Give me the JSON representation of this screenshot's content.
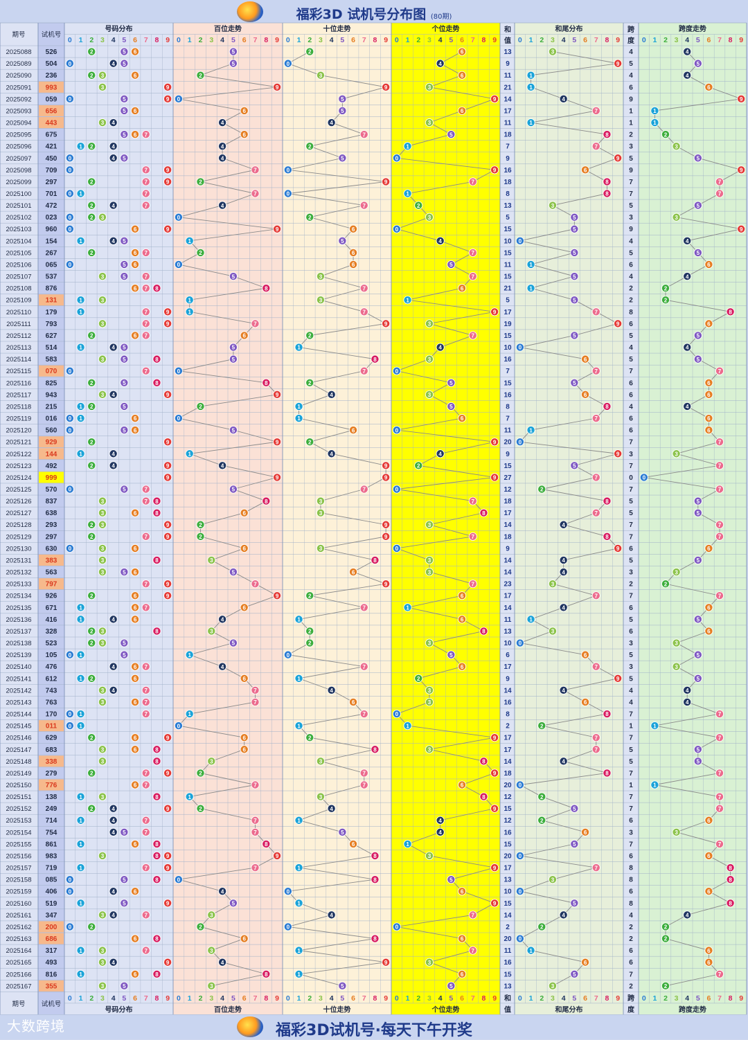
{
  "header": {
    "title": "福彩3D 试机号分布图",
    "period_count": "(80期)"
  },
  "footer": {
    "brand": "大数跨境",
    "slogan": "福彩3D试机号·每天下午开奖"
  },
  "columns": {
    "issue": "期号",
    "trial": "试机号",
    "dist": "号码分布",
    "hundreds": "百位走势",
    "tens": "十位走势",
    "units": "个位走势",
    "sum_top": "和",
    "sum_bottom": "值",
    "sumtail": "和尾分布",
    "span_top": "跨",
    "span_bottom": "度",
    "span": "跨度走势",
    "digits": [
      "0",
      "1",
      "2",
      "3",
      "4",
      "5",
      "6",
      "7",
      "8",
      "9"
    ]
  },
  "colors": {
    "ball": [
      "#2b7cd3",
      "#1aa3d8",
      "#3cae3c",
      "#8bc34a",
      "#1f3560",
      "#7e57c2",
      "#e67e22",
      "#ec6b8d",
      "#d81b60",
      "#e53935"
    ],
    "dist_bg": "#dde3f4",
    "hundreds_bg": "#fbe1d6",
    "tens_bg": "#fdf1d8",
    "units_bg": "#ffff00",
    "sum_bg": "#dde3f4",
    "sumtail_bg": "#e7efda",
    "span_bg": "#d9f1d3",
    "highlight_trial": "#f6b98c",
    "triple_trial": "#ffff00"
  },
  "chart_data": {
    "type": "table",
    "issues": [
      "2025088",
      "2025089",
      "2025090",
      "2025091",
      "2025092",
      "2025093",
      "2025094",
      "2025095",
      "2025096",
      "2025097",
      "2025098",
      "2025099",
      "2025100",
      "2025101",
      "2025102",
      "2025103",
      "2025104",
      "2025105",
      "2025106",
      "2025107",
      "2025108",
      "2025109",
      "2025110",
      "2025111",
      "2025112",
      "2025113",
      "2025114",
      "2025115",
      "2025116",
      "2025117",
      "2025118",
      "2025119",
      "2025120",
      "2025121",
      "2025122",
      "2025123",
      "2025124",
      "2025125",
      "2025126",
      "2025127",
      "2025128",
      "2025129",
      "2025130",
      "2025131",
      "2025132",
      "2025133",
      "2025134",
      "2025135",
      "2025136",
      "2025137",
      "2025138",
      "2025139",
      "2025140",
      "2025141",
      "2025142",
      "2025143",
      "2025144",
      "2025145",
      "2025146",
      "2025147",
      "2025148",
      "2025149",
      "2025150",
      "2025151",
      "2025152",
      "2025153",
      "2025154",
      "2025155",
      "2025156",
      "2025157",
      "2025158",
      "2025159",
      "2025160",
      "2025161",
      "2025162",
      "2025163",
      "2025164",
      "2025165",
      "2025166",
      "2025167"
    ],
    "trial_numbers": [
      "526",
      "504",
      "236",
      "993",
      "059",
      "656",
      "443",
      "675",
      "421",
      "450",
      "709",
      "297",
      "701",
      "472",
      "023",
      "960",
      "154",
      "267",
      "065",
      "537",
      "876",
      "131",
      "179",
      "793",
      "627",
      "514",
      "583",
      "070",
      "825",
      "943",
      "215",
      "016",
      "560",
      "929",
      "144",
      "492",
      "999",
      "570",
      "837",
      "638",
      "293",
      "297",
      "630",
      "383",
      "563",
      "797",
      "926",
      "671",
      "416",
      "328",
      "523",
      "105",
      "476",
      "612",
      "743",
      "763",
      "170",
      "011",
      "629",
      "683",
      "338",
      "279",
      "776",
      "138",
      "249",
      "714",
      "754",
      "861",
      "983",
      "719",
      "085",
      "406",
      "519",
      "347",
      "200",
      "686",
      "317",
      "493",
      "816",
      "355"
    ],
    "sums": [
      "13",
      "9",
      "11",
      "21",
      "14",
      "17",
      "11",
      "18",
      "7",
      "9",
      "16",
      "18",
      "8",
      "13",
      "5",
      "15",
      "10",
      "15",
      "11",
      "15",
      "21",
      "5",
      "17",
      "19",
      "15",
      "10",
      "16",
      "7",
      "15",
      "16",
      "8",
      "7",
      "11",
      "20",
      "9",
      "15",
      "27",
      "12",
      "18",
      "17",
      "14",
      "18",
      "9",
      "14",
      "14",
      "23",
      "17",
      "14",
      "11",
      "13",
      "10",
      "6",
      "17",
      "9",
      "14",
      "16",
      "8",
      "2",
      "17",
      "17",
      "14",
      "18",
      "20",
      "12",
      "15",
      "12",
      "16",
      "15",
      "20",
      "17",
      "13",
      "10",
      "15",
      "14",
      "2",
      "20",
      "11",
      "16",
      "15",
      "13"
    ],
    "spans": [
      "4",
      "5",
      "4",
      "6",
      "9",
      "1",
      "1",
      "2",
      "3",
      "5",
      "9",
      "7",
      "7",
      "5",
      "3",
      "9",
      "4",
      "5",
      "6",
      "4",
      "2",
      "2",
      "8",
      "6",
      "5",
      "4",
      "5",
      "7",
      "6",
      "6",
      "4",
      "6",
      "6",
      "7",
      "3",
      "7",
      "0",
      "7",
      "5",
      "5",
      "7",
      "7",
      "6",
      "5",
      "3",
      "2",
      "7",
      "6",
      "5",
      "6",
      "3",
      "5",
      "3",
      "5",
      "4",
      "4",
      "7",
      "1",
      "7",
      "5",
      "5",
      "7",
      "1",
      "7",
      "7",
      "6",
      "3",
      "7",
      "6",
      "8",
      "8",
      "6",
      "8",
      "4",
      "2",
      "2",
      "6",
      "6",
      "7",
      "2"
    ]
  }
}
